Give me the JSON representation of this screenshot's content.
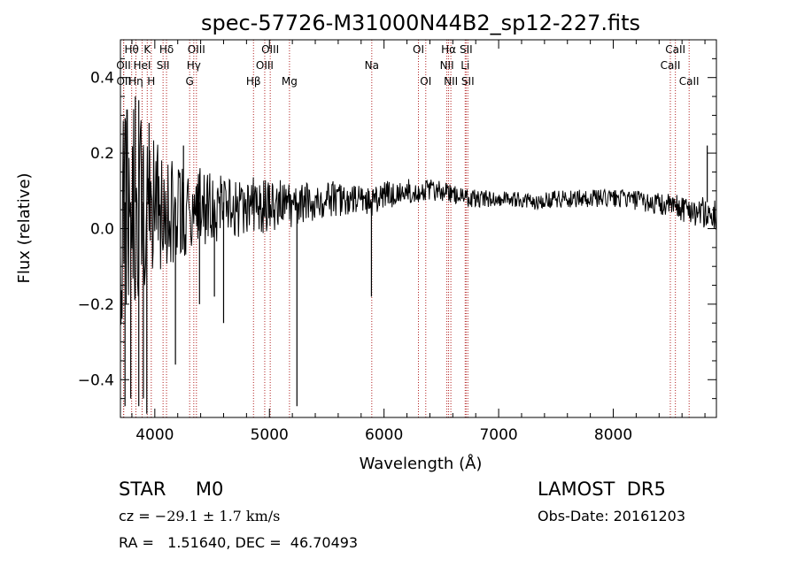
{
  "chart_data": {
    "type": "line",
    "title": "spec-57726-M31000N44B2_sp12-227.fits",
    "xlabel": "Wavelength (Å)",
    "ylabel": "Flux (relative)",
    "xlim": [
      3700,
      8900
    ],
    "ylim": [
      -0.5,
      0.5
    ],
    "x_ticks": [
      4000,
      5000,
      6000,
      7000,
      8000
    ],
    "x_tick_labels": [
      "4000",
      "5000",
      "6000",
      "7000",
      "8000"
    ],
    "y_ticks": [
      -0.4,
      -0.2,
      0.0,
      0.2,
      0.4
    ],
    "y_tick_labels": [
      "−0.4",
      "−0.2",
      "0.0",
      "0.2",
      "0.4"
    ],
    "grid": false,
    "series": [
      {
        "line_color": "#000000",
        "envelope_segments": [
          {
            "x": [
              3700,
              3760,
              3800,
              3850,
              3900,
              3950,
              4000,
              4050,
              4100,
              4150,
              4200,
              4300,
              4400,
              4500,
              4600,
              4700,
              4800,
              4900,
              5000,
              5100,
              5200,
              5300,
              5400,
              5500,
              5600,
              5700,
              5800,
              5900,
              6000,
              6100,
              6200,
              6300
            ],
            "center": [
              0.05,
              0.05,
              0.06,
              0.04,
              0.06,
              0.05,
              0.05,
              0.04,
              0.05,
              0.04,
              0.05,
              0.05,
              0.06,
              0.05,
              0.06,
              0.06,
              0.05,
              0.06,
              0.06,
              0.07,
              0.05,
              0.07,
              0.07,
              0.08,
              0.08,
              0.07,
              0.08,
              0.07,
              0.09,
              0.09,
              0.1,
              0.1
            ],
            "amplitude": [
              0.45,
              0.42,
              0.38,
              0.34,
              0.3,
              0.26,
              0.24,
              0.22,
              0.2,
              0.18,
              0.16,
              0.15,
              0.13,
              0.12,
              0.11,
              0.1,
              0.1,
              0.1,
              0.09,
              0.08,
              0.08,
              0.07,
              0.06,
              0.06,
              0.06,
              0.05,
              0.05,
              0.05,
              0.05,
              0.04,
              0.04,
              0.04
            ]
          },
          {
            "x": [
              6300,
              6500,
              6700,
              6900,
              7100,
              7300,
              7500,
              7700,
              7900,
              8100,
              8300,
              8500,
              8700,
              8900
            ],
            "center": [
              0.1,
              0.1,
              0.08,
              0.08,
              0.08,
              0.07,
              0.08,
              0.08,
              0.08,
              0.08,
              0.07,
              0.06,
              0.05,
              0.03
            ],
            "amplitude": [
              0.04,
              0.035,
              0.03,
              0.03,
              0.025,
              0.025,
              0.03,
              0.03,
              0.03,
              0.03,
              0.035,
              0.04,
              0.05,
              0.06
            ]
          }
        ],
        "spikes": [
          {
            "x": 3740,
            "y": -0.47
          },
          {
            "x": 3790,
            "y": -0.45
          },
          {
            "x": 3860,
            "y": -0.47
          },
          {
            "x": 3900,
            "y": -0.45
          },
          {
            "x": 3930,
            "y": -0.49
          },
          {
            "x": 4180,
            "y": -0.36
          },
          {
            "x": 4390,
            "y": -0.2
          },
          {
            "x": 4520,
            "y": -0.18
          },
          {
            "x": 4600,
            "y": -0.25
          },
          {
            "x": 5240,
            "y": -0.47
          },
          {
            "x": 5890,
            "y": -0.18
          },
          {
            "x": 3830,
            "y": 0.35
          },
          {
            "x": 3860,
            "y": 0.34
          },
          {
            "x": 3950,
            "y": 0.28
          },
          {
            "x": 4250,
            "y": 0.22
          },
          {
            "x": 8820,
            "y": 0.22
          }
        ]
      }
    ],
    "reference_lines": [
      {
        "label": "Hθ",
        "x": 3798,
        "row": 0
      },
      {
        "label": "K",
        "x": 3934,
        "row": 0
      },
      {
        "label": "Hδ",
        "x": 4102,
        "row": 0
      },
      {
        "label": "OIII",
        "x": 4363,
        "row": 0
      },
      {
        "label": "OIII",
        "x": 5007,
        "row": 0
      },
      {
        "label": "OI",
        "x": 6300,
        "row": 0
      },
      {
        "label": "Hα",
        "x": 6563,
        "row": 0
      },
      {
        "label": "SII",
        "x": 6716,
        "row": 0
      },
      {
        "label": "CaII",
        "x": 8542,
        "row": 0
      },
      {
        "label": "OII",
        "x": 3727,
        "row": 1
      },
      {
        "label": "HeI",
        "x": 3889,
        "row": 1
      },
      {
        "label": "SII",
        "x": 4072,
        "row": 1
      },
      {
        "label": "Hγ",
        "x": 4340,
        "row": 1
      },
      {
        "label": "OIII",
        "x": 4959,
        "row": 1
      },
      {
        "label": "Na",
        "x": 5893,
        "row": 1
      },
      {
        "label": "NII",
        "x": 6548,
        "row": 1
      },
      {
        "label": "Li",
        "x": 6708,
        "row": 1
      },
      {
        "label": "CaII",
        "x": 8498,
        "row": 1
      },
      {
        "label": "OII",
        "x": 3729,
        "row": 2
      },
      {
        "label": "Hη",
        "x": 3835,
        "row": 2
      },
      {
        "label": "H",
        "x": 3969,
        "row": 2
      },
      {
        "label": "G",
        "x": 4304,
        "row": 2
      },
      {
        "label": "Hβ",
        "x": 4861,
        "row": 2
      },
      {
        "label": "Mg",
        "x": 5175,
        "row": 2
      },
      {
        "label": "OI",
        "x": 6364,
        "row": 2
      },
      {
        "label": "NII",
        "x": 6583,
        "row": 2
      },
      {
        "label": "SII",
        "x": 6731,
        "row": 2
      },
      {
        "label": "CaII",
        "x": 8662,
        "row": 2
      }
    ]
  },
  "info": {
    "class_line": "STAR     M0",
    "cz_prefix": "cz = ",
    "cz_value": "−29.1 ± 1.7 km/s",
    "coords": "RA =   1.51640, DEC =  46.70493",
    "survey": "LAMOST  DR5",
    "obs_date": "Obs-Date: 20161203"
  },
  "colors": {
    "reference_line": "#b22222",
    "spectrum": "#000000",
    "axes": "#000000"
  }
}
